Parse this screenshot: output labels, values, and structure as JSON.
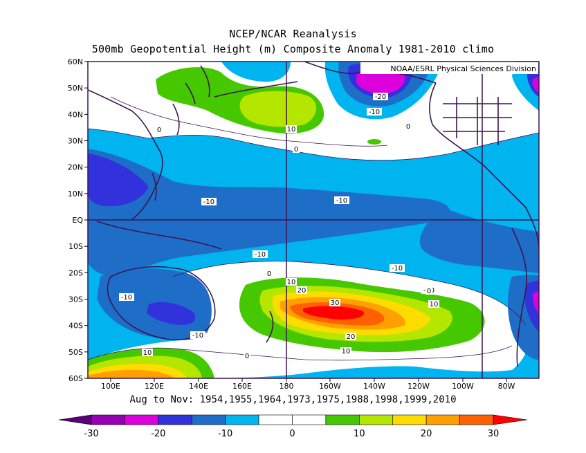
{
  "title_line1": "NCEP/NCAR Reanalysis",
  "title_line2": "500mb Geopotential Height (m) Composite Anomaly 1981-2010 climo",
  "credit": "NOAA/ESRL Physical Sciences Division",
  "footer": "Aug to Nov: 1954,1955,1964,1973,1975,1988,1998,1999,2010",
  "lat_labels": [
    "60N",
    "50N",
    "40N",
    "30N",
    "20N",
    "10N",
    "EQ",
    "10S",
    "20S",
    "30S",
    "40S",
    "50S",
    "60S"
  ],
  "lon_labels": [
    "100E",
    "120E",
    "140E",
    "160E",
    "180",
    "160W",
    "140W",
    "120W",
    "100W",
    "80W"
  ],
  "colorbar": {
    "labels": [
      "-30",
      "-20",
      "-10",
      "0",
      "10",
      "20",
      "30"
    ],
    "colors": [
      "#9600b4",
      "#dc00dc",
      "#3232dc",
      "#1e6ec8",
      "#00b4f0",
      "#ffffff",
      "#ffffff",
      "#46c800",
      "#b4e600",
      "#ffdc00",
      "#ffa000",
      "#ff6000"
    ],
    "end_left": "#5a0078",
    "end_right": "#ff0000"
  },
  "contour_labels": [
    {
      "text": "-20"
    },
    {
      "text": "-10"
    },
    {
      "text": "0"
    },
    {
      "text": "10"
    },
    {
      "text": "0"
    },
    {
      "text": "0"
    },
    {
      "text": "-10"
    },
    {
      "text": "-10"
    },
    {
      "text": "-10"
    },
    {
      "text": "-10"
    },
    {
      "text": "-10"
    },
    {
      "text": "-10"
    },
    {
      "text": "-10"
    },
    {
      "text": "0"
    },
    {
      "text": "10"
    },
    {
      "text": "20"
    },
    {
      "text": "30"
    },
    {
      "text": "10"
    },
    {
      "text": "0"
    },
    {
      "text": "20"
    },
    {
      "text": "10"
    },
    {
      "text": "10"
    },
    {
      "text": "0"
    }
  ],
  "colors": {
    "frame": "#3c1450",
    "land": "#3c1450",
    "grid": "#3c1450"
  }
}
